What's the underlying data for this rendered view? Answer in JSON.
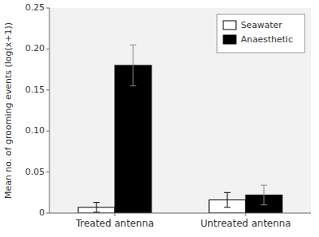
{
  "chart_data": {
    "type": "bar",
    "y_label": "Mean no. of grooming events (log(x+1))",
    "categories": [
      "Treated antenna",
      "Untreated antenna"
    ],
    "series": [
      {
        "name": "Seawater",
        "color": "white",
        "values": [
          0.007,
          0.016
        ],
        "errors": [
          0.006,
          0.009
        ]
      },
      {
        "name": "Anaesthetic",
        "color": "black",
        "values": [
          0.18,
          0.022
        ],
        "errors": [
          0.025,
          0.012
        ]
      }
    ],
    "ylim": [
      0,
      0.25
    ],
    "yticks": [
      0,
      0.05,
      {
        "value": 0.1,
        "label": "0.10"
      },
      0.15,
      {
        "value": 0.2,
        "label": "0.20"
      },
      0.25
    ],
    "legend": "upper right",
    "grid": false
  }
}
